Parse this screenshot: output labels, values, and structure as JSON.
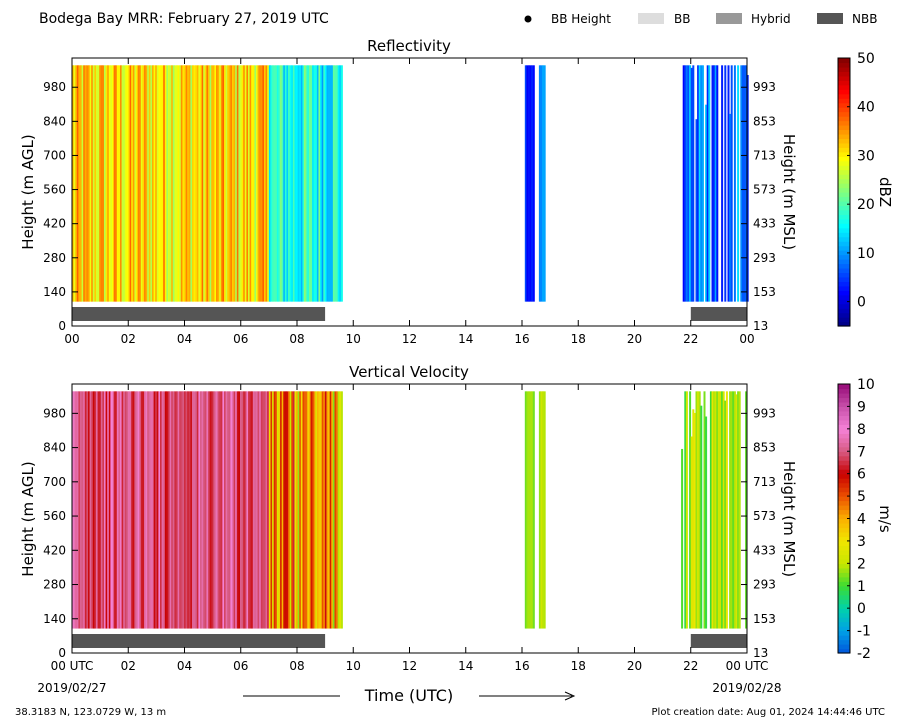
{
  "header": {
    "title": "Bodega Bay MRR:  February 27, 2019 UTC",
    "legend": [
      {
        "label": "BB Height",
        "marker": "dot",
        "color": "#000000"
      },
      {
        "label": "BB",
        "marker": "box",
        "color": "#dddddd"
      },
      {
        "label": "Hybrid",
        "marker": "box",
        "color": "#999999"
      },
      {
        "label": "NBB",
        "marker": "box",
        "color": "#555555"
      }
    ]
  },
  "footer": {
    "location": "38.3183 N, 123.0729 W, 13 m",
    "creation": "Plot creation date: Aug 01, 2024 14:44:46 UTC",
    "start_date": "2019/02/27",
    "end_date": "2019/02/28",
    "xlabel": "Time (UTC)"
  },
  "chart_data": [
    {
      "type": "heatmap",
      "title": "Reflectivity",
      "ylabel": "Height (m AGL)",
      "y2label": "Height (m MSL)",
      "xlim": [
        0,
        24
      ],
      "ylim": [
        0,
        1100
      ],
      "data_range_y": [
        100,
        1100
      ],
      "x_ticks": [
        "00",
        "02",
        "04",
        "06",
        "08",
        "10",
        "12",
        "14",
        "16",
        "18",
        "20",
        "22",
        "00"
      ],
      "y_ticks": [
        0,
        140,
        280,
        420,
        560,
        700,
        840,
        980
      ],
      "y2_ticks": [
        13,
        153,
        293,
        433,
        573,
        713,
        853,
        993
      ],
      "colorbar": {
        "label": "dBZ",
        "range": [
          -5,
          50
        ],
        "ticks": [
          0,
          10,
          20,
          30,
          40,
          50
        ],
        "colormap": "jet"
      },
      "segments": [
        {
          "x_start": 0.0,
          "x_end": 7.0,
          "value_range": [
            24,
            38
          ],
          "mode": "full"
        },
        {
          "x_start": 7.0,
          "x_end": 9.6,
          "value_range": [
            10,
            24
          ],
          "mode": "full"
        },
        {
          "x_start": 16.1,
          "x_end": 16.4,
          "value_range": [
            1,
            6
          ],
          "mode": "partial"
        },
        {
          "x_start": 16.6,
          "x_end": 16.8,
          "value_range": [
            8,
            12
          ],
          "mode": "partial"
        },
        {
          "x_start": 21.6,
          "x_end": 24.0,
          "value_range": [
            0,
            14
          ],
          "mode": "patchy"
        }
      ],
      "nbb_periods": [
        [
          0.0,
          9.0
        ],
        [
          22.0,
          24.0
        ]
      ]
    },
    {
      "type": "heatmap",
      "title": "Vertical Velocity",
      "ylabel": "Height (m AGL)",
      "y2label": "Height (m MSL)",
      "xlim": [
        0,
        24
      ],
      "ylim": [
        0,
        1100
      ],
      "data_range_y": [
        100,
        1100
      ],
      "x_ticks": [
        "00 UTC",
        "02",
        "04",
        "06",
        "08",
        "10",
        "12",
        "14",
        "16",
        "18",
        "20",
        "22",
        "00 UTC"
      ],
      "y_ticks": [
        0,
        140,
        280,
        420,
        560,
        700,
        840,
        980
      ],
      "y2_ticks": [
        13,
        153,
        293,
        433,
        573,
        713,
        853,
        993
      ],
      "colorbar": {
        "label": "m/s",
        "range": [
          -2,
          10
        ],
        "ticks": [
          -2,
          -1,
          0,
          1,
          2,
          3,
          4,
          5,
          6,
          7,
          8,
          9,
          10
        ]
      },
      "segments": [
        {
          "x_start": 0.0,
          "x_end": 7.0,
          "value_range": [
            6,
            8
          ],
          "mode": "full"
        },
        {
          "x_start": 7.0,
          "x_end": 9.6,
          "value_range": [
            1.5,
            6.5
          ],
          "mode": "full"
        },
        {
          "x_start": 16.1,
          "x_end": 16.4,
          "value_range": [
            1,
            2
          ],
          "mode": "partial"
        },
        {
          "x_start": 16.6,
          "x_end": 16.8,
          "value_range": [
            1.5,
            2.5
          ],
          "mode": "partial"
        },
        {
          "x_start": 21.6,
          "x_end": 24.0,
          "value_range": [
            0.5,
            3
          ],
          "mode": "patchy"
        }
      ],
      "nbb_periods": [
        [
          0.0,
          9.0
        ],
        [
          22.0,
          24.0
        ]
      ]
    }
  ]
}
